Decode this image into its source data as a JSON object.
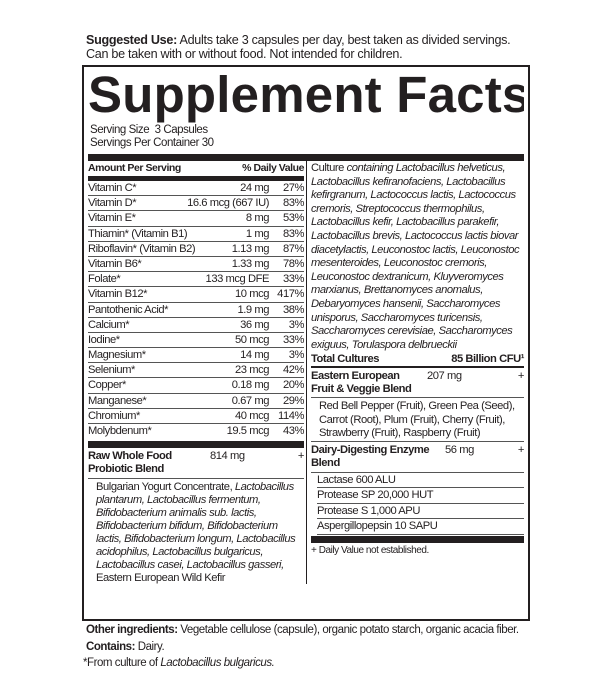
{
  "suggested_use": {
    "label": "Suggested Use:",
    "text": " Adults take 3 capsules per day, best taken as divided servings. Can be taken with or without food. Not intended for children."
  },
  "title": "Supplement Facts",
  "serving_size": "Serving Size  3 Capsules",
  "servings_per_container": "Servings Per Container 30",
  "header": {
    "amount": "Amount Per Serving",
    "dv": "% Daily Value"
  },
  "nutrients": [
    {
      "name": "Vitamin C*",
      "amount": "24 mg",
      "dv": "27%"
    },
    {
      "name": "Vitamin D*",
      "amount": "16.6 mcg (667 IU)",
      "dv": "83%"
    },
    {
      "name": "Vitamin E*",
      "amount": "8 mg",
      "dv": "53%"
    },
    {
      "name": "Thiamin* (Vitamin B1)",
      "amount": "1 mg",
      "dv": "83%"
    },
    {
      "name": "Riboflavin* (Vitamin B2)",
      "amount": "1.13 mg",
      "dv": "87%"
    },
    {
      "name": "Vitamin B6*",
      "amount": "1.33 mg",
      "dv": "78%"
    },
    {
      "name": "Folate*",
      "amount": "133 mcg DFE",
      "dv": "33%"
    },
    {
      "name": "Vitamin B12*",
      "amount": "10 mcg",
      "dv": "417%"
    },
    {
      "name": "Pantothenic Acid*",
      "amount": "1.9 mg",
      "dv": "38%"
    },
    {
      "name": "Calcium*",
      "amount": "36 mg",
      "dv": "3%"
    },
    {
      "name": "Iodine*",
      "amount": "50 mcg",
      "dv": "33%"
    },
    {
      "name": "Magnesium*",
      "amount": "14 mg",
      "dv": "3%"
    },
    {
      "name": "Selenium*",
      "amount": "23 mcg",
      "dv": "42%"
    },
    {
      "name": "Copper*",
      "amount": "0.18 mg",
      "dv": "20%"
    },
    {
      "name": "Manganese*",
      "amount": "0.67 mg",
      "dv": "29%"
    },
    {
      "name": "Chromium*",
      "amount": "40 mcg",
      "dv": "114%"
    },
    {
      "name": "Molybdenum*",
      "amount": "19.5 mcg",
      "dv": "43%"
    }
  ],
  "probiotic_blend": {
    "name": "Raw Whole Food Probiotic Blend",
    "amount": "814 mg",
    "dv": "+",
    "segments": [
      {
        "t": "Bulgarian Yogurt Concentrate, ",
        "i": false
      },
      {
        "t": "Lactobacillus plantarum, Lactobacillus fermentum, Bifidobacterium animalis sub. lactis, Bifidobacterium bifidum, Bifidobacterium lactis, Bifidobacterium longum, Lactobacillus acidophilus, Lactobacillus bulgaricus, Lactobacillus casei, Lactobacillus gasseri,",
        "i": true
      },
      {
        "t": " Eastern European Wild Kefir",
        "i": false
      }
    ]
  },
  "culture": {
    "segments": [
      {
        "t": "Culture ",
        "i": false
      },
      {
        "t": "containing Lactobacillus helveticus, Lactobacillus kefiranofaciens, Lactobacillus kefirgranum, Lactococcus lactis, Lactococcus cremoris, Streptococcus thermophilus, Lactobacillus kefir, Lactobacillus parakefir, Lactobacillus brevis, Lactococcus lactis biovar diacetylactis, Leuconostoc lactis, Leuconostoc mesenteroides, Leuconostoc cremoris, Leuconostoc dextranicum, Kluyveromyces marxianus, Brettanomyces anomalus, Debaryomyces hansenii, Saccharomyces unisporus, Saccharomyces turicensis, Saccharomyces cerevisiae, Saccharomyces exiguus, Torulaspora delbrueckii",
        "i": true
      }
    ]
  },
  "total_cultures": {
    "label": "Total Cultures",
    "value": "85 Billion CFU¹"
  },
  "fruit_blend": {
    "name": "Eastern European Fruit & Veggie Blend",
    "amount": "207 mg",
    "dv": "+",
    "ingredients": "Red Bell Pepper (Fruit), Green Pea (Seed), Carrot (Root), Plum (Fruit), Cherry (Fruit), Strawberry (Fruit), Raspberry (Fruit)"
  },
  "enzyme_blend": {
    "name": "Dairy-Digesting Enzyme Blend",
    "amount": "56 mg",
    "dv": "+",
    "items": [
      "Lactase 600 ALU",
      "Protease SP 20,000 HUT",
      "Protease S 1,000 APU",
      "Aspergillopepsin 10 SAPU"
    ]
  },
  "dv_note": "+ Daily Value not established.",
  "other_ingredients": {
    "label": "Other ingredients:",
    "text": " Vegetable cellulose (capsule), organic potato starch, organic acacia fiber."
  },
  "contains": {
    "label": "Contains:",
    "text": " Dairy."
  },
  "footnote": {
    "prefix": "*From culture of ",
    "italic": "Lactobacillus bulgaricus."
  }
}
